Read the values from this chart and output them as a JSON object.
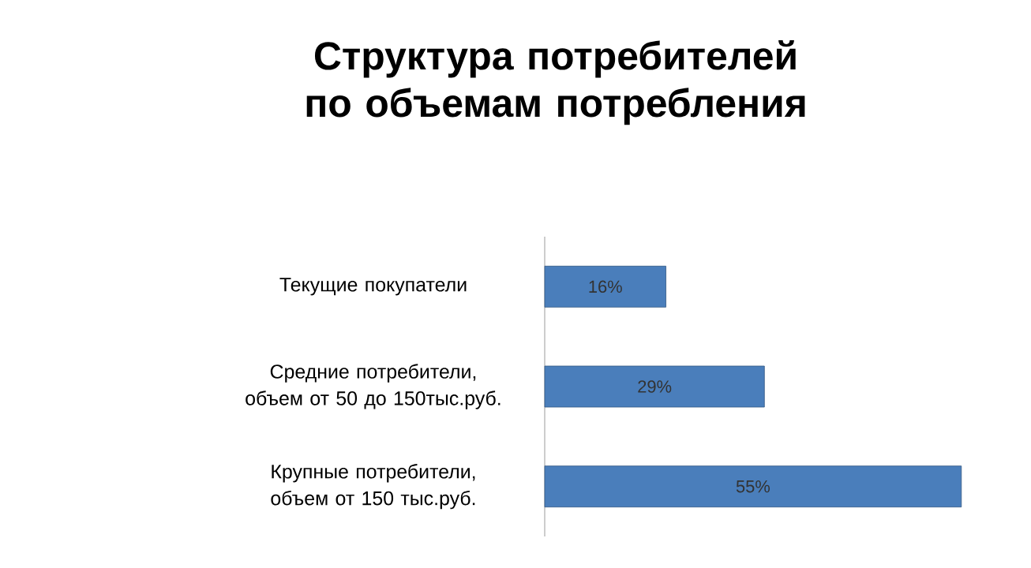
{
  "chart_data": {
    "type": "bar",
    "orientation": "horizontal",
    "title": "Структура потребителей по объемам потребления",
    "categories": [
      "Текущие покупатели",
      "Средние потребители, объем от 50 до 150тыс.руб.",
      "Крупные потребители, объем от 150 тыс.руб."
    ],
    "values": [
      16,
      29,
      55
    ],
    "value_labels": [
      "16%",
      "29%",
      "55%"
    ],
    "color": "#4a7ebb"
  }
}
